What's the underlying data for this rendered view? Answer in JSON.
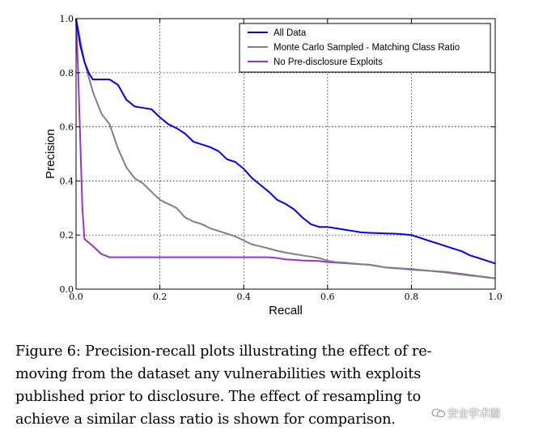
{
  "chart_data": {
    "type": "line",
    "xlabel": "Recall",
    "ylabel": "Precision",
    "xlim": [
      0.0,
      1.0
    ],
    "ylim": [
      0.0,
      1.0
    ],
    "xticks": [
      "0.0",
      "0.2",
      "0.4",
      "0.6",
      "0.8",
      "1.0"
    ],
    "yticks": [
      "0.0",
      "0.2",
      "0.4",
      "0.6",
      "0.8",
      "1.0"
    ],
    "grid": true,
    "legend_position": "top-right",
    "series": [
      {
        "name": "All Data",
        "color": "#0000ff",
        "x": [
          0.0,
          0.01,
          0.02,
          0.03,
          0.04,
          0.06,
          0.08,
          0.1,
          0.12,
          0.14,
          0.16,
          0.18,
          0.2,
          0.22,
          0.24,
          0.26,
          0.28,
          0.3,
          0.32,
          0.34,
          0.36,
          0.38,
          0.4,
          0.42,
          0.44,
          0.46,
          0.48,
          0.5,
          0.52,
          0.54,
          0.56,
          0.58,
          0.6,
          0.62,
          0.64,
          0.66,
          0.68,
          0.7,
          0.72,
          0.74,
          0.76,
          0.78,
          0.8,
          0.82,
          0.84,
          0.86,
          0.88,
          0.9,
          0.92,
          0.94,
          0.96,
          0.98,
          1.0
        ],
        "y": [
          1.0,
          0.9,
          0.84,
          0.8,
          0.775,
          0.775,
          0.775,
          0.755,
          0.7,
          0.675,
          0.67,
          0.665,
          0.635,
          0.61,
          0.595,
          0.575,
          0.545,
          0.535,
          0.525,
          0.51,
          0.48,
          0.47,
          0.445,
          0.41,
          0.385,
          0.36,
          0.33,
          0.315,
          0.295,
          0.265,
          0.24,
          0.23,
          0.23,
          0.225,
          0.22,
          0.215,
          0.21,
          0.208,
          0.207,
          0.206,
          0.205,
          0.203,
          0.2,
          0.19,
          0.18,
          0.17,
          0.16,
          0.15,
          0.14,
          0.125,
          0.115,
          0.105,
          0.095
        ]
      },
      {
        "name": "Monte Carlo Sampled - Matching Class Ratio",
        "color": "#808080",
        "x": [
          0.0,
          0.02,
          0.04,
          0.06,
          0.08,
          0.1,
          0.12,
          0.14,
          0.16,
          0.18,
          0.2,
          0.22,
          0.24,
          0.26,
          0.28,
          0.3,
          0.32,
          0.34,
          0.36,
          0.38,
          0.4,
          0.42,
          0.44,
          0.46,
          0.48,
          0.5,
          0.52,
          0.54,
          0.56,
          0.58,
          0.6,
          0.62,
          0.64,
          0.66,
          0.68,
          0.7,
          0.72,
          0.74,
          0.76,
          0.78,
          0.8,
          0.82,
          0.84,
          0.86,
          0.88,
          0.9,
          0.92,
          0.94,
          0.96,
          0.98,
          1.0
        ],
        "y": [
          1.0,
          0.84,
          0.73,
          0.65,
          0.61,
          0.52,
          0.45,
          0.41,
          0.39,
          0.36,
          0.33,
          0.315,
          0.3,
          0.265,
          0.25,
          0.24,
          0.225,
          0.215,
          0.205,
          0.195,
          0.18,
          0.165,
          0.158,
          0.15,
          0.142,
          0.135,
          0.13,
          0.125,
          0.12,
          0.115,
          0.105,
          0.1,
          0.098,
          0.095,
          0.092,
          0.09,
          0.085,
          0.08,
          0.077,
          0.075,
          0.072,
          0.07,
          0.068,
          0.065,
          0.062,
          0.058,
          0.054,
          0.05,
          0.047,
          0.043,
          0.04
        ]
      },
      {
        "name": "No Pre-disclosure Exploits",
        "color": "#9933cc",
        "x": [
          0.0,
          0.005,
          0.01,
          0.015,
          0.02,
          0.04,
          0.06,
          0.08,
          0.1,
          0.2,
          0.3,
          0.4,
          0.46,
          0.48,
          0.5,
          0.52,
          0.54,
          0.56,
          0.58,
          0.6,
          0.62,
          0.64,
          0.66,
          0.68,
          0.7,
          0.72,
          0.74,
          0.76,
          0.78,
          0.8,
          0.82,
          0.84,
          0.86,
          0.88,
          0.9,
          0.92,
          0.94,
          0.96,
          0.98,
          1.0
        ],
        "y": [
          1.0,
          0.8,
          0.55,
          0.3,
          0.185,
          0.16,
          0.13,
          0.118,
          0.118,
          0.118,
          0.118,
          0.118,
          0.118,
          0.115,
          0.11,
          0.108,
          0.106,
          0.105,
          0.104,
          0.1,
          0.098,
          0.096,
          0.094,
          0.092,
          0.09,
          0.085,
          0.08,
          0.078,
          0.076,
          0.074,
          0.071,
          0.068,
          0.066,
          0.064,
          0.06,
          0.056,
          0.052,
          0.048,
          0.044,
          0.04
        ]
      }
    ]
  },
  "caption": "Figure 6: Precision-recall plots illustrating the effect of removing from the dataset any vulnerabilities with exploits published prior to disclosure. The effect of resampling to achieve a similar class ratio is shown for comparison.",
  "caption_lines": [
    "Figure 6: Precision-recall plots illustrating the effect of re-",
    "moving from the dataset any vulnerabilities with exploits",
    "published prior to disclosure.  The effect of resampling to",
    "achieve a similar class ratio is shown for comparison."
  ],
  "watermark": "安全学术圈"
}
